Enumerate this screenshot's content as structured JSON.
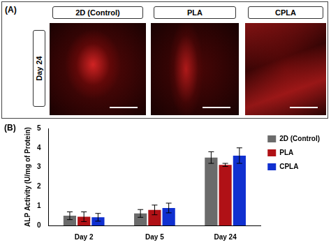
{
  "panel_a": {
    "label": "(A)",
    "row_label": "Day 24",
    "images": [
      "2D (Control)",
      "PLA",
      "CPLA"
    ]
  },
  "panel_b_label": "(B)",
  "chart_data": {
    "type": "bar",
    "y_label": "ALP Activity (U/mg of Protein)",
    "categories": [
      "Day 2",
      "Day 5",
      "Day 24"
    ],
    "series": [
      {
        "name": "2D (Control)",
        "color": "#6b6b6b",
        "values": [
          0.5,
          0.62,
          3.5
        ],
        "errors": [
          0.2,
          0.2,
          0.3
        ]
      },
      {
        "name": "PLA",
        "color": "#b01116",
        "values": [
          0.45,
          0.8,
          3.12
        ],
        "errors": [
          0.25,
          0.25,
          0.08
        ]
      },
      {
        "name": "CPLA",
        "color": "#1030d0",
        "values": [
          0.42,
          0.9,
          3.6
        ],
        "errors": [
          0.2,
          0.25,
          0.4
        ]
      }
    ],
    "ylim": [
      0,
      5
    ],
    "yticks": [
      0,
      1,
      2,
      3,
      4,
      5
    ],
    "grid": false,
    "legend": "upper right"
  }
}
